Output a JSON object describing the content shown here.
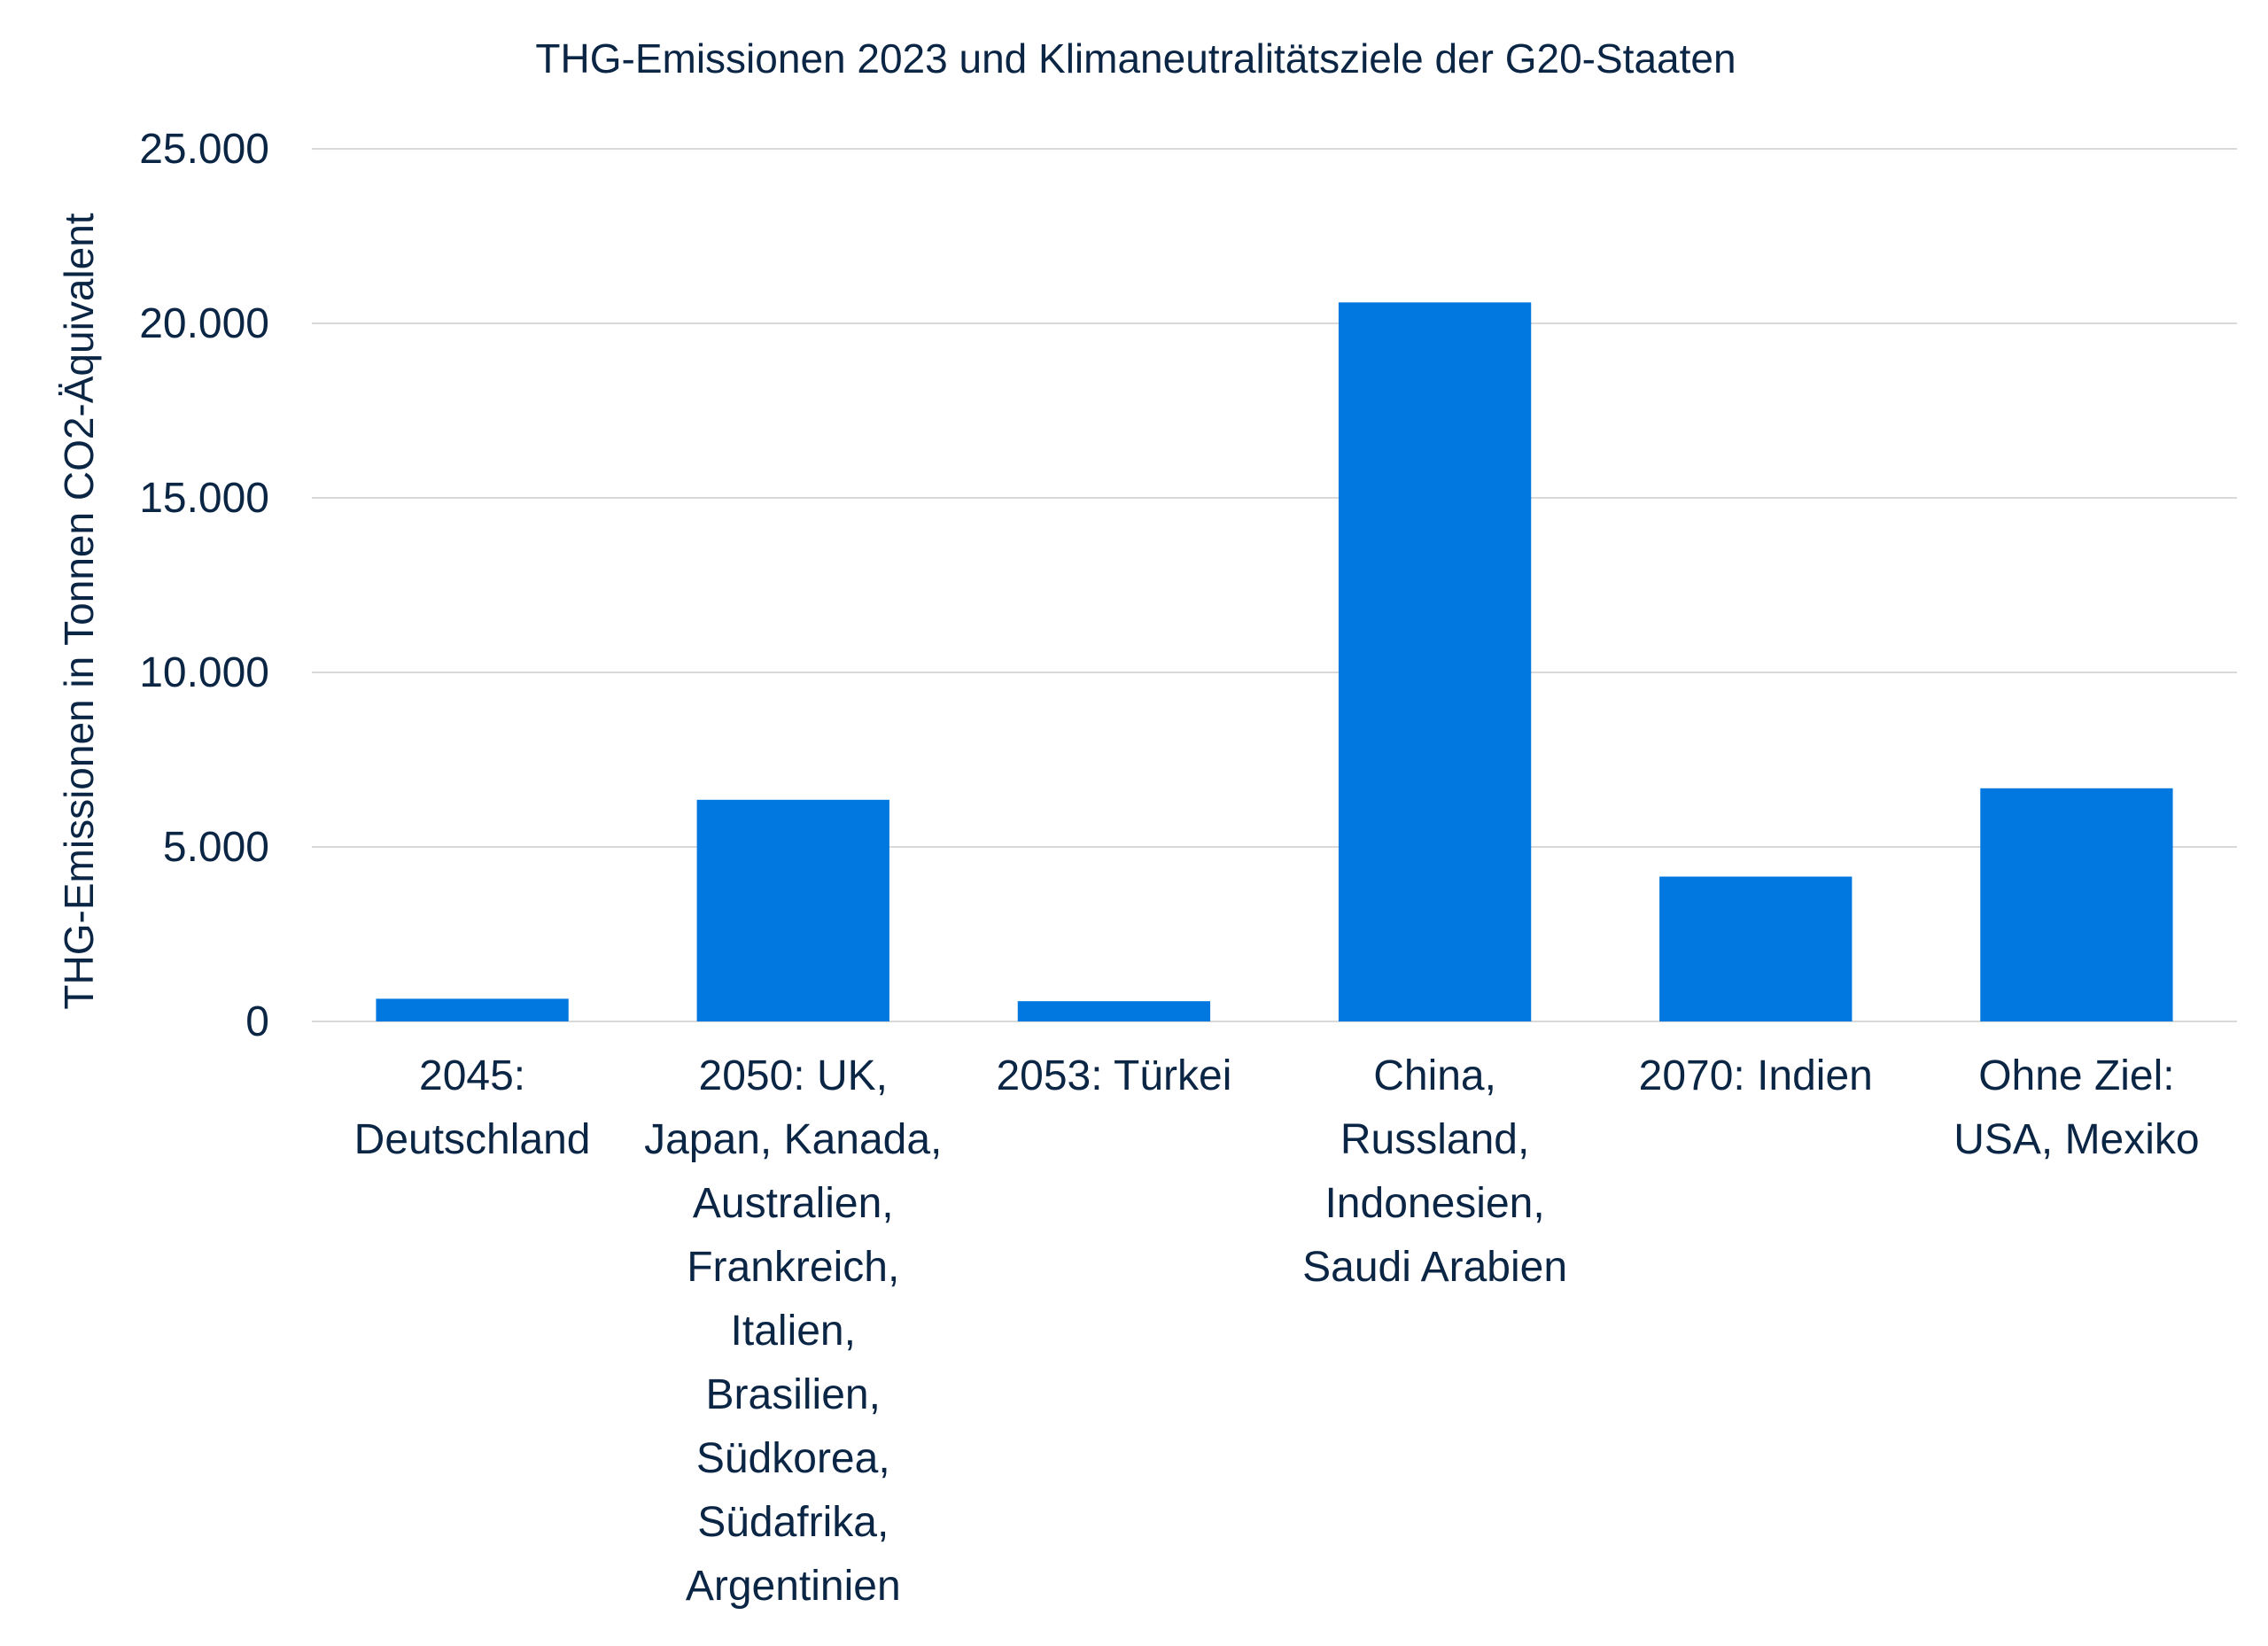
{
  "chart_data": {
    "type": "bar",
    "title": "THG-Emissionen 2023 und Klimaneutralitätsziele der G20-Staaten",
    "ylabel": "THG-Emissionen in Tonnen CO2-Äquivalent",
    "xlabel": "",
    "ylim": [
      0,
      25000
    ],
    "yticks": [
      0,
      5000,
      10000,
      15000,
      20000,
      25000
    ],
    "ytick_labels": [
      "0",
      "5.000",
      "10.000",
      "15.000",
      "20.000",
      "25.000"
    ],
    "grid": true,
    "legend": "none",
    "categories": [
      [
        "2045:",
        "Deutschland"
      ],
      [
        "2050: UK,",
        "Japan, Kanada,",
        "Australien,",
        "Frankreich,",
        "Italien,",
        "Brasilien,",
        "Südkorea,",
        "Südafrika,",
        "Argentinien"
      ],
      [
        "2053: Türkei"
      ],
      [
        "China,",
        "Russland,",
        "Indonesien,",
        "Saudi Arabien"
      ],
      [
        "2070: Indien"
      ],
      [
        "Ohne Ziel:",
        "USA, Mexiko"
      ]
    ],
    "values": [
      650,
      6350,
      580,
      20600,
      4150,
      6680
    ],
    "colors": {
      "bar": "#0078E0",
      "text": "#0B2545",
      "grid": "#D9D9D9"
    }
  }
}
